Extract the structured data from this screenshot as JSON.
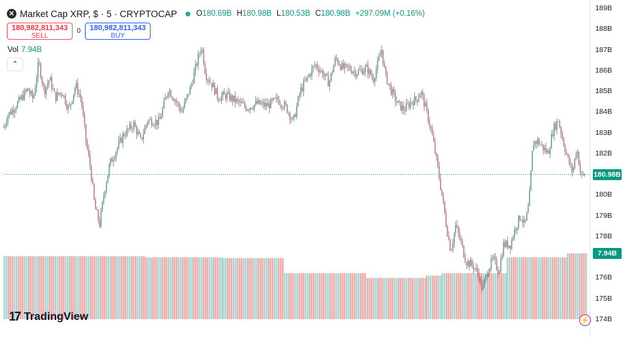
{
  "header": {
    "symbol_icon": "xrp-icon",
    "title": "Market Cap XRP, $ · 5 · CRYPTOCAP",
    "status": "market-open-dot",
    "ohlc": [
      {
        "key": "O",
        "value": "180.69B"
      },
      {
        "key": "H",
        "value": "180.98B"
      },
      {
        "key": "L",
        "value": "180.53B"
      },
      {
        "key": "C",
        "value": "180.98B"
      }
    ],
    "change": "+297.09M (+0.16%)"
  },
  "trade": {
    "sell_price": "180,982,811,343",
    "sell_label": "SELL",
    "spread": "0",
    "buy_price": "180,982,811,343",
    "buy_label": "BUY"
  },
  "volume": {
    "label": "Vol",
    "value": "7.94B",
    "collapse_icon": "chevron-up-icon"
  },
  "y_axis": {
    "ticks": [
      "189B",
      "188B",
      "187B",
      "186B",
      "185B",
      "184B",
      "183B",
      "182B",
      "181B",
      "180B",
      "179B",
      "178B",
      "177B",
      "176B",
      "175B",
      "174B"
    ],
    "last_price_tag": "180.98B",
    "last_volume_tag": "7.94B"
  },
  "branding": {
    "logo_mark": "17",
    "logo_text": "TradingView",
    "bolt_icon": "lightning-icon"
  },
  "colors": {
    "up": "#26a69a",
    "down": "#ef5350",
    "volume_up": "#a7d7d3",
    "volume_down": "#f0aaa9",
    "price_line": "#089981"
  },
  "chart_data": {
    "type": "candlestick",
    "ylim": [
      174,
      189
    ],
    "last_close": 180.98,
    "price_path": [
      [
        0,
        182.7
      ],
      [
        10,
        183.8
      ],
      [
        25,
        184.4
      ],
      [
        40,
        185.1
      ],
      [
        48,
        184.6
      ],
      [
        56,
        186.4
      ],
      [
        64,
        185.0
      ],
      [
        72,
        185.6
      ],
      [
        80,
        184.7
      ],
      [
        90,
        185.0
      ],
      [
        100,
        184.1
      ],
      [
        110,
        185.3
      ],
      [
        118,
        184.6
      ],
      [
        125,
        182.6
      ],
      [
        132,
        181.2
      ],
      [
        138,
        179.4
      ],
      [
        145,
        178.6
      ],
      [
        152,
        180.2
      ],
      [
        160,
        181.5
      ],
      [
        170,
        182.2
      ],
      [
        180,
        182.9
      ],
      [
        195,
        183.4
      ],
      [
        205,
        182.6
      ],
      [
        215,
        183.6
      ],
      [
        232,
        183.5
      ],
      [
        245,
        185.1
      ],
      [
        255,
        184.6
      ],
      [
        265,
        184.0
      ],
      [
        278,
        185.2
      ],
      [
        288,
        186.5
      ],
      [
        294,
        187.2
      ],
      [
        300,
        185.8
      ],
      [
        310,
        185.3
      ],
      [
        318,
        184.7
      ],
      [
        330,
        184.8
      ],
      [
        345,
        184.5
      ],
      [
        360,
        184.2
      ],
      [
        375,
        184.4
      ],
      [
        390,
        184.3
      ],
      [
        405,
        184.6
      ],
      [
        418,
        184.2
      ],
      [
        428,
        183.5
      ],
      [
        438,
        185.0
      ],
      [
        448,
        185.6
      ],
      [
        460,
        186.3
      ],
      [
        470,
        185.9
      ],
      [
        480,
        185.4
      ],
      [
        490,
        186.6
      ],
      [
        500,
        186.1
      ],
      [
        510,
        186.1
      ],
      [
        520,
        185.9
      ],
      [
        535,
        186.1
      ],
      [
        545,
        185.6
      ],
      [
        552,
        186.4
      ],
      [
        557,
        187.0
      ],
      [
        562,
        185.8
      ],
      [
        570,
        185.1
      ],
      [
        580,
        184.4
      ],
      [
        590,
        184.1
      ],
      [
        600,
        184.5
      ],
      [
        608,
        184.6
      ],
      [
        614,
        185.0
      ],
      [
        622,
        184.1
      ],
      [
        630,
        183.0
      ],
      [
        638,
        181.5
      ],
      [
        645,
        180.0
      ],
      [
        652,
        178.4
      ],
      [
        658,
        177.3
      ],
      [
        665,
        178.5
      ],
      [
        672,
        177.8
      ],
      [
        680,
        176.8
      ],
      [
        690,
        176.6
      ],
      [
        698,
        176.2
      ],
      [
        704,
        175.4
      ],
      [
        712,
        176.4
      ],
      [
        720,
        176.9
      ],
      [
        728,
        176.3
      ],
      [
        735,
        177.6
      ],
      [
        745,
        177.6
      ],
      [
        752,
        178.4
      ],
      [
        760,
        179.0
      ],
      [
        766,
        178.5
      ],
      [
        772,
        179.5
      ],
      [
        778,
        182.5
      ],
      [
        785,
        182.6
      ],
      [
        792,
        182.3
      ],
      [
        800,
        182.0
      ],
      [
        808,
        183.2
      ],
      [
        815,
        183.6
      ],
      [
        822,
        182.6
      ],
      [
        830,
        181.6
      ],
      [
        836,
        181.1
      ],
      [
        842,
        182.3
      ],
      [
        848,
        180.9
      ],
      [
        854,
        180.98
      ]
    ],
    "volume_steps": [
      {
        "x_from": 5,
        "x_to": 212,
        "value": 7.94
      },
      {
        "x_from": 212,
        "x_to": 325,
        "value": 7.8
      },
      {
        "x_from": 325,
        "x_to": 415,
        "value": 7.7
      },
      {
        "x_from": 415,
        "x_to": 533,
        "value": 5.8
      },
      {
        "x_from": 533,
        "x_to": 622,
        "value": 5.2
      },
      {
        "x_from": 622,
        "x_to": 645,
        "value": 5.5
      },
      {
        "x_from": 645,
        "x_to": 740,
        "value": 5.8
      },
      {
        "x_from": 740,
        "x_to": 828,
        "value": 7.8
      },
      {
        "x_from": 828,
        "x_to": 856,
        "value": 8.3
      }
    ]
  }
}
